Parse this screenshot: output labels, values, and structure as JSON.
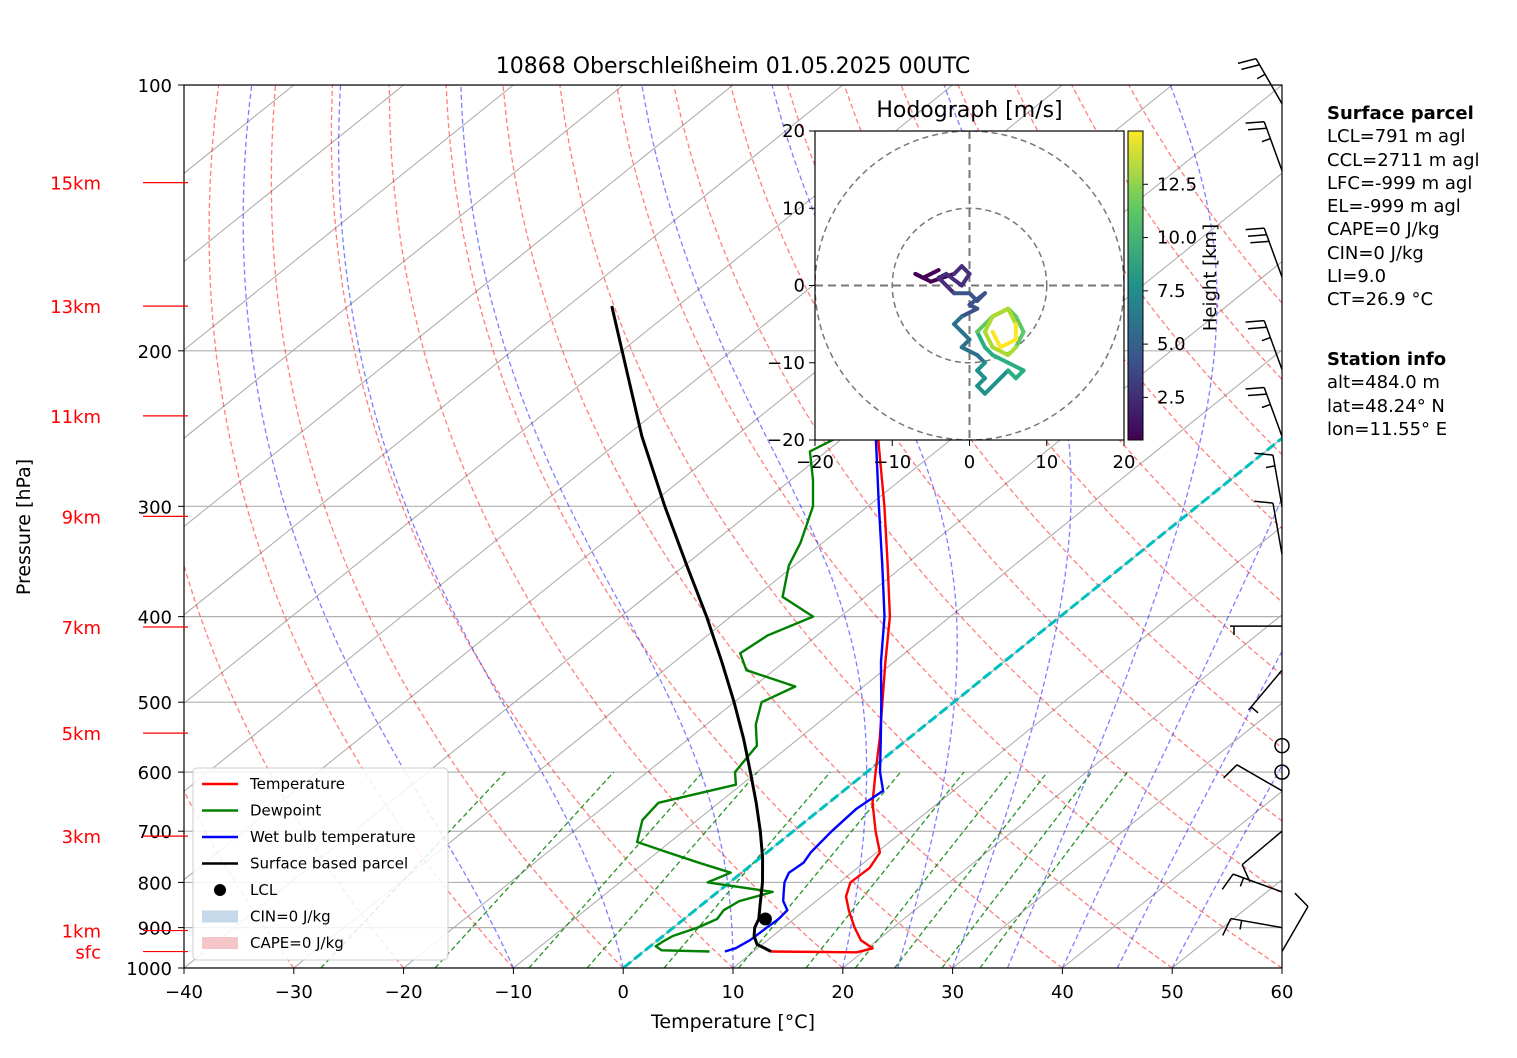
{
  "title": "10868 Oberschleißheim 01.05.2025 00UTC",
  "chart_data": [
    {
      "type": "line",
      "chart_kind": "skew-T log-p diagram",
      "title": "10868 Oberschleißheim 01.05.2025 00UTC",
      "xlabel": "Temperature [°C]",
      "ylabel": "Pressure [hPa]",
      "xlim": [
        -40,
        60
      ],
      "ylim": [
        1000,
        100
      ],
      "y_scale": "log",
      "x_ticks": [
        "−40",
        "−30",
        "−20",
        "−10",
        "0",
        "10",
        "20",
        "30",
        "40",
        "50",
        "60"
      ],
      "y_ticks": [
        "100",
        "200",
        "300",
        "400",
        "500",
        "600",
        "700",
        "800",
        "900",
        "1000"
      ],
      "height_ticks": [
        {
          "label": "15km",
          "p": 129
        },
        {
          "label": "13km",
          "p": 178
        },
        {
          "label": "11km",
          "p": 237
        },
        {
          "label": "9km",
          "p": 308
        },
        {
          "label": "7km",
          "p": 411
        },
        {
          "label": "5km",
          "p": 542
        },
        {
          "label": "3km",
          "p": 709
        },
        {
          "label": "1km",
          "p": 907
        },
        {
          "label": "sfc",
          "p": 958
        }
      ],
      "legend_position": "lower-left",
      "series": [
        {
          "name": "Temperature",
          "color": "#ff0000",
          "points": [
            [
              958,
              11.6
            ],
            [
              960,
              19.5
            ],
            [
              950,
              20.5
            ],
            [
              930,
              18.5
            ],
            [
              900,
              16.5
            ],
            [
              860,
              14
            ],
            [
              830,
              12.2
            ],
            [
              800,
              11.0
            ],
            [
              770,
              11.1
            ],
            [
              740,
              10.3
            ],
            [
              700,
              7.5
            ],
            [
              650,
              4.0
            ],
            [
              600,
              0.8
            ],
            [
              550,
              -2.6
            ],
            [
              500,
              -6.5
            ],
            [
              450,
              -10.8
            ],
            [
              400,
              -15.5
            ],
            [
              350,
              -21.5
            ],
            [
              300,
              -28.5
            ],
            [
              250,
              -37
            ],
            [
              220,
              -43
            ],
            [
              200,
              -46.5
            ],
            [
              185,
              -47.8
            ],
            [
              175,
              -46.5
            ],
            [
              160,
              -45.5
            ],
            [
              150,
              -45.8
            ],
            [
              140,
              -45.2
            ],
            [
              130,
              -44.4
            ],
            [
              125,
              -45
            ]
          ]
        },
        {
          "name": "Dewpoint",
          "color": "#008000",
          "points": [
            [
              958,
              6.0
            ],
            [
              955,
              1.5
            ],
            [
              945,
              0.5
            ],
            [
              935,
              0.6
            ],
            [
              920,
              0.9
            ],
            [
              900,
              2.2
            ],
            [
              880,
              3.0
            ],
            [
              860,
              2.6
            ],
            [
              840,
              3.0
            ],
            [
              820,
              5.0
            ],
            [
              800,
              -2
            ],
            [
              780,
              -1
            ],
            [
              760,
              -5
            ],
            [
              740,
              -9
            ],
            [
              720,
              -13
            ],
            [
              680,
              -15
            ],
            [
              650,
              -15.5
            ],
            [
              620,
              -10.5
            ],
            [
              600,
              -12
            ],
            [
              580,
              -12.5
            ],
            [
              560,
              -13
            ],
            [
              530,
              -15.5
            ],
            [
              500,
              -17.5
            ],
            [
              480,
              -16.2
            ],
            [
              460,
              -22.5
            ],
            [
              440,
              -25
            ],
            [
              420,
              -24.5
            ],
            [
              400,
              -22.5
            ],
            [
              380,
              -27.5
            ],
            [
              350,
              -30.5
            ],
            [
              330,
              -32
            ],
            [
              300,
              -35
            ],
            [
              280,
              -38
            ],
            [
              260,
              -41.5
            ],
            [
              250,
              -40.5
            ],
            [
              240,
              -43
            ],
            [
              230,
              -44.5
            ],
            [
              220,
              -46
            ],
            [
              200,
              -49.5
            ],
            [
              185,
              -51.5
            ],
            [
              175,
              -55
            ],
            [
              168,
              -56
            ],
            [
              160,
              -58
            ],
            [
              155,
              -58.5
            ],
            [
              145,
              -60
            ],
            [
              135,
              -61
            ],
            [
              128,
              -62
            ],
            [
              125,
              -62
            ]
          ]
        },
        {
          "name": "Wet bulb temperature",
          "color": "#0000ff",
          "points": [
            [
              958,
              7.4
            ],
            [
              950,
              8.0
            ],
            [
              930,
              8.4
            ],
            [
              900,
              8.5
            ],
            [
              880,
              8.6
            ],
            [
              860,
              8.4
            ],
            [
              840,
              7.0
            ],
            [
              820,
              6.0
            ],
            [
              800,
              5.0
            ],
            [
              780,
              4.3
            ],
            [
              760,
              4.5
            ],
            [
              740,
              4.0
            ],
            [
              700,
              3.5
            ],
            [
              660,
              3.2
            ],
            [
              630,
              3.6
            ],
            [
              600,
              1.2
            ],
            [
              550,
              -2.5
            ],
            [
              500,
              -6.6
            ],
            [
              450,
              -11.2
            ],
            [
              400,
              -16
            ],
            [
              350,
              -22
            ],
            [
              300,
              -29
            ],
            [
              250,
              -37.2
            ],
            [
              220,
              -43.5
            ],
            [
              200,
              -47
            ],
            [
              185,
              -48
            ],
            [
              175,
              -46.8
            ],
            [
              160,
              -45.8
            ],
            [
              150,
              -46
            ],
            [
              140,
              -45.5
            ],
            [
              130,
              -44.6
            ],
            [
              125,
              -45.2
            ]
          ]
        },
        {
          "name": "Surface based parcel",
          "color": "#000000",
          "points": [
            [
              958,
              11.6
            ],
            [
              940,
              9.5
            ],
            [
              920,
              8.3
            ],
            [
              900,
              7.4
            ],
            [
              880,
              6.8
            ],
            [
              850,
              5.4
            ],
            [
              800,
              3.0
            ],
            [
              750,
              0.2
            ],
            [
              700,
              -3.0
            ],
            [
              650,
              -6.6
            ],
            [
              600,
              -10.6
            ],
            [
              550,
              -15.0
            ],
            [
              500,
              -20.0
            ],
            [
              450,
              -25.7
            ],
            [
              400,
              -32.2
            ],
            [
              350,
              -39.8
            ],
            [
              300,
              -48.5
            ],
            [
              250,
              -58.5
            ],
            [
              200,
              -70
            ],
            [
              178,
              -76
            ]
          ]
        }
      ],
      "lcl": {
        "name": "LCL",
        "p": 880,
        "t": 7.4
      },
      "legend_entries": [
        "Temperature",
        "Dewpoint",
        "Wet bulb temperature",
        "Surface based parcel",
        "LCL",
        "CIN=0 J/kg",
        "CAPE=0 J/kg"
      ],
      "isotherm_0C": {
        "color": "#00bfbf",
        "style": "dashed"
      },
      "wind_barbs": {
        "position": "right-edge",
        "levels": [
          {
            "p": 958,
            "dir": 30,
            "spd": 10
          },
          {
            "p": 900,
            "dir": 280,
            "spd": 15
          },
          {
            "p": 820,
            "dir": 290,
            "spd": 15
          },
          {
            "p": 700,
            "dir": 230,
            "spd": 10
          },
          {
            "p": 630,
            "dir": 300,
            "spd": 10
          },
          {
            "p": 600,
            "dir": 0,
            "spd": 0
          },
          {
            "p": 560,
            "dir": 0,
            "spd": 0
          },
          {
            "p": 460,
            "dir": 220,
            "spd": 5
          },
          {
            "p": 410,
            "dir": 270,
            "spd": 5
          },
          {
            "p": 340,
            "dir": 350,
            "spd": 10
          },
          {
            "p": 300,
            "dir": 350,
            "spd": 15
          },
          {
            "p": 250,
            "dir": 340,
            "spd": 25
          },
          {
            "p": 210,
            "dir": 340,
            "spd": 25
          },
          {
            "p": 165,
            "dir": 340,
            "spd": 30
          },
          {
            "p": 125,
            "dir": 340,
            "spd": 25
          },
          {
            "p": 105,
            "dir": 330,
            "spd": 25
          }
        ]
      }
    },
    {
      "type": "line",
      "chart_kind": "hodograph",
      "title": "Hodograph [m/s]",
      "xlim": [
        -20,
        20
      ],
      "ylim": [
        -20,
        20
      ],
      "x_ticks": [
        "−20",
        "−10",
        "0",
        "10",
        "20"
      ],
      "y_ticks": [
        "−20",
        "−10",
        "0",
        "10",
        "20"
      ],
      "rings": [
        10,
        20
      ],
      "colorbar": {
        "label": "Height [km]",
        "ticks": [
          "2.5",
          "5.0",
          "7.5",
          "10.0",
          "12.5"
        ],
        "range": [
          0.5,
          15
        ],
        "colormap": "viridis"
      },
      "points": [
        [
          -4,
          2,
          0.5
        ],
        [
          -6,
          1,
          0.8
        ],
        [
          -7,
          1.5,
          1.0
        ],
        [
          -5,
          0.5,
          1.3
        ],
        [
          -2,
          1.5,
          1.6
        ],
        [
          -1,
          2.5,
          1.9
        ],
        [
          0,
          1.5,
          2.2
        ],
        [
          -1,
          0,
          2.5
        ],
        [
          -3,
          1.5,
          2.8
        ],
        [
          -4,
          1,
          3.1
        ],
        [
          -2,
          -1,
          3.4
        ],
        [
          0,
          -1,
          3.7
        ],
        [
          1,
          -2,
          4.0
        ],
        [
          2,
          -1,
          4.3
        ],
        [
          0,
          -2.5,
          4.6
        ],
        [
          1,
          -3,
          4.9
        ],
        [
          -1,
          -4,
          5.2
        ],
        [
          -2,
          -5,
          5.5
        ],
        [
          -1,
          -6,
          5.8
        ],
        [
          0,
          -7,
          6.1
        ],
        [
          -1,
          -8,
          6.4
        ],
        [
          1,
          -9,
          6.7
        ],
        [
          2,
          -10,
          7.0
        ],
        [
          1,
          -11,
          7.3
        ],
        [
          2,
          -12,
          7.6
        ],
        [
          1,
          -13,
          7.9
        ],
        [
          2,
          -14,
          8.2
        ],
        [
          4,
          -12,
          8.5
        ],
        [
          5,
          -11,
          8.8
        ],
        [
          6,
          -12,
          9.1
        ],
        [
          7,
          -11,
          9.4
        ],
        [
          5,
          -10,
          9.7
        ],
        [
          3,
          -9,
          10.0
        ],
        [
          2,
          -8,
          10.3
        ],
        [
          1,
          -6,
          10.6
        ],
        [
          2,
          -5,
          10.9
        ],
        [
          3,
          -4,
          11.2
        ],
        [
          5,
          -3,
          11.5
        ],
        [
          6,
          -4,
          11.8
        ],
        [
          7,
          -6,
          12.1
        ],
        [
          6,
          -8,
          12.4
        ],
        [
          5,
          -9,
          12.7
        ],
        [
          3,
          -8,
          13.0
        ],
        [
          2,
          -6,
          13.3
        ],
        [
          3,
          -4,
          13.6
        ],
        [
          5,
          -3,
          13.9
        ],
        [
          6,
          -5,
          14.2
        ],
        [
          6,
          -7,
          14.5
        ],
        [
          4,
          -8,
          14.8
        ],
        [
          3,
          -6,
          15.0
        ]
      ]
    }
  ],
  "surface_parcel": {
    "heading": "Surface parcel",
    "lines": [
      "LCL=791 m agl",
      "CCL=2711 m agl",
      "LFC=-999 m agl",
      "EL=-999 m agl",
      "CAPE=0 J/kg",
      "CIN=0 J/kg",
      "LI=9.0",
      "CT=26.9 °C"
    ]
  },
  "station_info": {
    "heading": "Station info",
    "lines": [
      "alt=484.0 m",
      "lat=48.24° N",
      "lon=11.55° E"
    ]
  },
  "colors": {
    "temperature": "#ff0000",
    "dewpoint": "#008000",
    "wetbulb": "#0000ff",
    "parcel": "#000000",
    "zero_isotherm": "#00bfbf",
    "dry_adiabat": "#ff0000",
    "moist_adiabat": "#0000ff",
    "mixing_ratio": "#008000"
  }
}
